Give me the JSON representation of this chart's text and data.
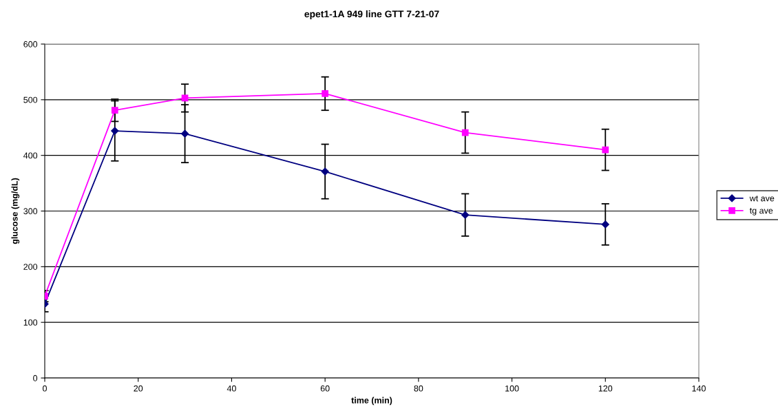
{
  "chart_data": {
    "type": "line",
    "title": "epet1-1A 949 line GTT 7-21-07",
    "xlabel": "time (min)",
    "ylabel": "glucose (mg/dL)",
    "x": [
      0,
      15,
      30,
      60,
      90,
      120
    ],
    "series": [
      {
        "name": "wt ave",
        "color": "#000080",
        "marker": "diamond",
        "values": [
          133,
          444,
          439,
          371,
          293,
          276
        ],
        "errors": [
          14,
          54,
          52,
          49,
          38,
          37
        ]
      },
      {
        "name": "tg ave",
        "color": "#ff00ff",
        "marker": "square",
        "values": [
          147,
          481,
          503,
          511,
          441,
          410
        ],
        "errors": [
          10,
          20,
          25,
          30,
          37,
          37
        ]
      }
    ],
    "xlim": [
      0,
      140
    ],
    "xticks": [
      0,
      20,
      40,
      60,
      80,
      100,
      120,
      140
    ],
    "ylim": [
      0,
      600
    ],
    "yticks": [
      0,
      100,
      200,
      300,
      400,
      500,
      600
    ],
    "grid": "y",
    "legend": "right"
  }
}
